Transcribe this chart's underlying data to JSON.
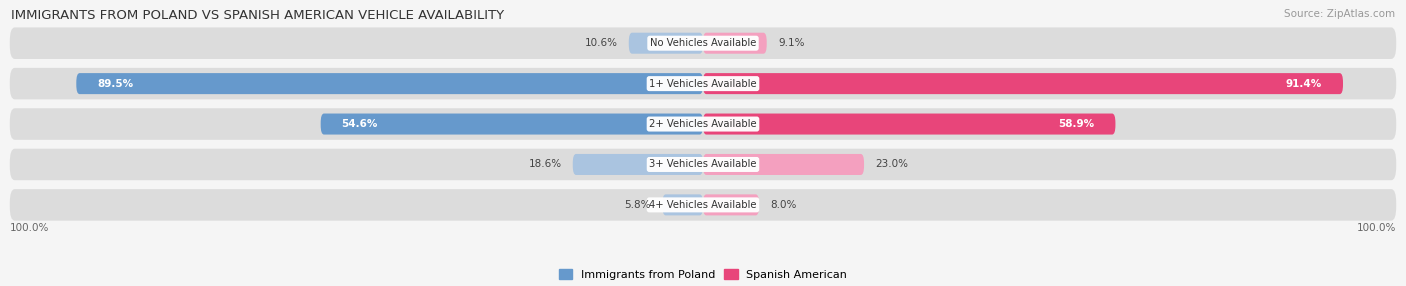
{
  "title": "IMMIGRANTS FROM POLAND VS SPANISH AMERICAN VEHICLE AVAILABILITY",
  "source": "Source: ZipAtlas.com",
  "categories": [
    "No Vehicles Available",
    "1+ Vehicles Available",
    "2+ Vehicles Available",
    "3+ Vehicles Available",
    "4+ Vehicles Available"
  ],
  "poland_values": [
    10.6,
    89.5,
    54.6,
    18.6,
    5.8
  ],
  "spanish_values": [
    9.1,
    91.4,
    58.9,
    23.0,
    8.0
  ],
  "poland_color_dark": "#6699cc",
  "poland_color_light": "#aac4e0",
  "spanish_color_dark": "#e8457a",
  "spanish_color_light": "#f4a0bf",
  "row_bg_color": "#e8e8e8",
  "row_bg_alt": "#f0f0f0",
  "fig_bg": "#f5f5f5",
  "legend_poland": "Immigrants from Poland",
  "legend_spanish": "Spanish American"
}
